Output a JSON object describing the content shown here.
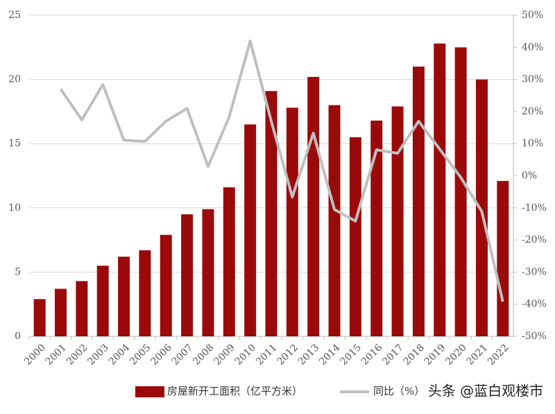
{
  "chart_data": {
    "type": "bar_line",
    "categories": [
      "2000",
      "2001",
      "2002",
      "2003",
      "2004",
      "2005",
      "2006",
      "2007",
      "2008",
      "2009",
      "2010",
      "2011",
      "2012",
      "2013",
      "2014",
      "2015",
      "2016",
      "2017",
      "2018",
      "2019",
      "2020",
      "2021",
      "2022"
    ],
    "series": [
      {
        "name": "房屋新开工面积（亿平方米）",
        "type": "bar",
        "color": "#9b0a0a",
        "values": [
          2.9,
          3.7,
          4.3,
          5.5,
          6.2,
          6.7,
          7.9,
          9.5,
          9.9,
          11.6,
          16.5,
          19.1,
          17.8,
          20.2,
          18.0,
          15.5,
          16.8,
          17.9,
          21.0,
          22.8,
          22.5,
          20.0,
          12.1
        ]
      },
      {
        "name": "同比（%）",
        "type": "line",
        "axis": "y2",
        "color": "#bfbfbf",
        "values": [
          null,
          27,
          17.4,
          28.4,
          11.1,
          10.7,
          17,
          21,
          2.9,
          18.3,
          42,
          17,
          -6.6,
          13.3,
          -10.5,
          -14.1,
          8.1,
          7,
          17,
          8.3,
          -0.5,
          -11.1,
          -39.2
        ]
      }
    ],
    "ylim": [
      0,
      25
    ],
    "yticks": [
      0,
      5,
      10,
      15,
      20,
      25
    ],
    "y2lim": [
      -50,
      50
    ],
    "y2ticks": [
      {
        "value": -50,
        "label": "-50%"
      },
      {
        "value": -40,
        "label": "-40%"
      },
      {
        "value": -30,
        "label": "-30%"
      },
      {
        "value": -20,
        "label": "-20%"
      },
      {
        "value": -10,
        "label": "-10%"
      },
      {
        "value": 0,
        "label": "0%"
      },
      {
        "value": 10,
        "label": "10%"
      },
      {
        "value": 20,
        "label": "20%"
      },
      {
        "value": 30,
        "label": "30%"
      },
      {
        "value": 40,
        "label": "40%"
      },
      {
        "value": 50,
        "label": "50%"
      }
    ],
    "grid": true,
    "watermark": "头条 @蓝白观楼市"
  }
}
